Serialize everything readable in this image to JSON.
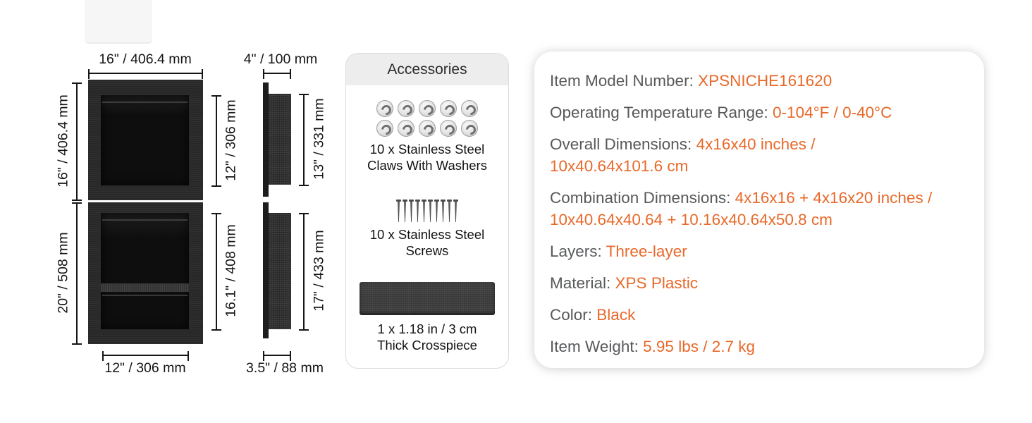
{
  "colors": {
    "accent_orange": "#e8692a",
    "label_gray": "#57585a",
    "diagram_ink": "#161616",
    "product_black": "#282828",
    "accessories_header_bg": "#ededed"
  },
  "diagram": {
    "labels": {
      "front_top_width": "16\" / 406.4 mm",
      "side_top_depth": "4\" / 100 mm",
      "front_top_height": "16\" / 406.4 mm",
      "front_top_opening_height": "12\" / 306 mm",
      "side_top_height": "13\" / 331 mm",
      "front_bottom_height": "20\" / 508 mm",
      "front_bottom_opening_height": "16.1\" / 408 mm",
      "side_bottom_height": "17\" / 433 mm",
      "front_bottom_opening_width": "12\" / 306 mm",
      "side_bottom_depth": "3.5\" / 88 mm"
    }
  },
  "accessories": {
    "title": "Accessories",
    "claws": {
      "count": 10,
      "label": "10 x Stainless Steel\nClaws With Washers"
    },
    "screws": {
      "count": 10,
      "label": "10 x Stainless Steel\nScrews"
    },
    "crosspiece": {
      "count": 1,
      "label": "1 x 1.18 in / 3 cm\nThick Crosspiece"
    }
  },
  "specs": {
    "rows": [
      {
        "label": "Item Model Number:",
        "value": "XPSNICHE161620"
      },
      {
        "label": "Operating Temperature Range:",
        "value": "0-104°F / 0-40°C"
      },
      {
        "label": "Overall Dimensions:",
        "value": "4x16x40 inches /\n10x40.64x101.6 cm"
      },
      {
        "label": "Combination Dimensions:",
        "value": "4x16x16 + 4x16x20 inches /\n10x40.64x40.64 + 10.16x40.64x50.8 cm"
      },
      {
        "label": "Layers:",
        "value": "Three-layer"
      },
      {
        "label": "Material:",
        "value": "XPS Plastic"
      },
      {
        "label": "Color:",
        "value": "Black"
      },
      {
        "label": "Item Weight:",
        "value": "5.95 lbs / 2.7 kg"
      }
    ]
  }
}
